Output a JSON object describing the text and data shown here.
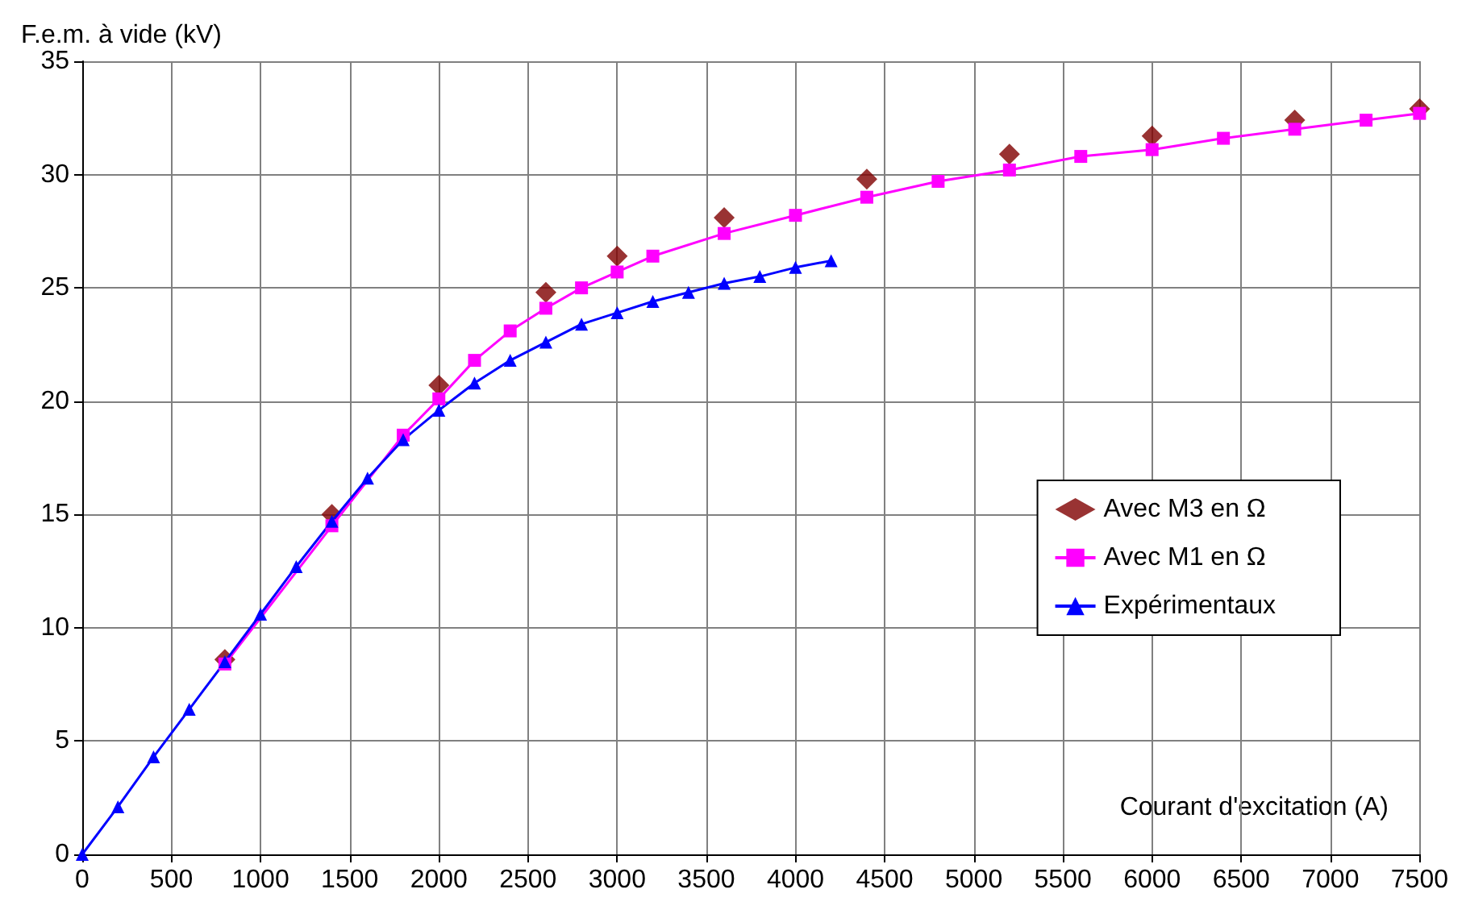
{
  "chart_data": {
    "type": "line",
    "ylabel": "F.e.m. à vide (kV)",
    "xlabel": "Courant d'excitation (A)",
    "xlim": [
      0,
      7500
    ],
    "xticks": [
      0,
      500,
      1000,
      1500,
      2000,
      2500,
      3000,
      3500,
      4000,
      4500,
      5000,
      5500,
      6000,
      6500,
      7000,
      7500
    ],
    "ylim": [
      0,
      35
    ],
    "yticks": [
      0,
      5,
      10,
      15,
      20,
      25,
      30,
      35
    ],
    "grid": true,
    "legend": "right",
    "series": [
      {
        "name": "Avec M3 en Ω",
        "type": "scatter",
        "marker": "diamond",
        "color": "#800000",
        "x": [
          800,
          1400,
          2000,
          2600,
          3000,
          3600,
          4400,
          5200,
          6000,
          6800,
          7500
        ],
        "values": [
          8.6,
          15.0,
          20.7,
          24.8,
          26.4,
          28.1,
          29.8,
          30.9,
          31.7,
          32.4,
          32.9
        ]
      },
      {
        "name": "Avec M1 en Ω",
        "marker": "square",
        "color": "#ff00ff",
        "x": [
          800,
          1400,
          1800,
          2000,
          2200,
          2400,
          2600,
          2800,
          3000,
          3200,
          3600,
          4000,
          4400,
          4800,
          5200,
          5600,
          6000,
          6400,
          6800,
          7200,
          7500
        ],
        "values": [
          8.4,
          14.5,
          18.5,
          20.1,
          21.8,
          23.1,
          24.1,
          25.0,
          25.7,
          26.4,
          27.4,
          28.2,
          29.0,
          29.7,
          30.2,
          30.8,
          31.1,
          31.6,
          32.0,
          32.4,
          32.7
        ]
      },
      {
        "name": "Expérimentaux",
        "marker": "triangle",
        "color": "#0000ff",
        "x": [
          0,
          200,
          400,
          600,
          800,
          1000,
          1200,
          1400,
          1600,
          1800,
          2000,
          2200,
          2400,
          2600,
          2800,
          3000,
          3200,
          3400,
          3600,
          3800,
          4000,
          4200
        ],
        "values": [
          0,
          2.1,
          4.3,
          6.4,
          8.5,
          10.6,
          12.7,
          14.7,
          16.6,
          18.3,
          19.6,
          20.8,
          21.8,
          22.6,
          23.4,
          23.9,
          24.4,
          24.8,
          25.2,
          25.5,
          25.9,
          26.2
        ]
      }
    ]
  }
}
